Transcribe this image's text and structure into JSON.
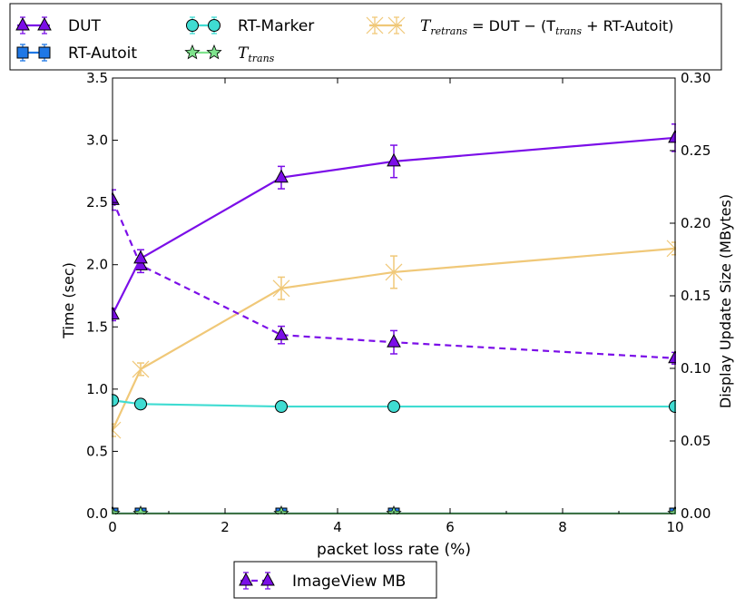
{
  "chart_data": {
    "type": "line",
    "xlabel": "packet loss rate (%)",
    "ylabel": "Time (sec)",
    "y2label": "Display Update Size (MBytes)",
    "xlim": [
      0,
      10
    ],
    "ylim": [
      0,
      3.5
    ],
    "y2lim": [
      0,
      0.3
    ],
    "x_ticks": [
      "0",
      "2",
      "4",
      "6",
      "8",
      "10"
    ],
    "y_ticks": [
      "0.0",
      "0.5",
      "1.0",
      "1.5",
      "2.0",
      "2.5",
      "3.0",
      "3.5"
    ],
    "y2_ticks": [
      "0.00",
      "0.05",
      "0.10",
      "0.15",
      "0.20",
      "0.25",
      "0.30"
    ],
    "grid": false,
    "top_legend": {
      "placement": "top",
      "entries": [
        {
          "series": "DUT",
          "label": "DUT"
        },
        {
          "series": "RT-Autoit",
          "label": "RT-Autoit"
        },
        {
          "series": "RT-Marker",
          "label": "RT-Marker"
        },
        {
          "series": "T_trans",
          "label": "T",
          "sub": "trans"
        },
        {
          "series": "T_retrans",
          "label": "T",
          "sub": "retrans",
          "suffix": " = DUT − (T",
          "sub2": "trans",
          "suffix2": " + RT-Autoit)"
        }
      ]
    },
    "bottom_legend": {
      "placement": "bottom",
      "entries": [
        {
          "series": "ImageView MB",
          "label": "ImageView MB"
        }
      ]
    },
    "series": [
      {
        "name": "DUT",
        "axis": "left",
        "color": "#7b0ee8",
        "style": "solid",
        "marker": "triangle",
        "x": [
          0,
          0.5,
          3,
          5,
          10
        ],
        "y": [
          1.6,
          2.05,
          2.7,
          2.83,
          3.02
        ],
        "err": [
          0.05,
          0.07,
          0.09,
          0.13,
          0.11
        ]
      },
      {
        "name": "RT-Autoit",
        "axis": "left",
        "color": "#1f78e6",
        "style": "solid",
        "marker": "square",
        "x": [
          0,
          0.5,
          3,
          5,
          10
        ],
        "y": [
          0.0,
          0.0,
          0.0,
          0.0,
          0.0
        ],
        "err": [
          0,
          0,
          0,
          0,
          0
        ]
      },
      {
        "name": "RT-Marker",
        "axis": "left",
        "color": "#3fdcd2",
        "style": "solid",
        "marker": "circle",
        "x": [
          0,
          0.5,
          3,
          5,
          10
        ],
        "y": [
          0.91,
          0.88,
          0.86,
          0.86,
          0.86
        ],
        "err": [
          0.01,
          0.01,
          0.01,
          0.01,
          0.01
        ]
      },
      {
        "name": "T_trans",
        "axis": "left",
        "color": "#7ee38c",
        "style": "solid",
        "marker": "star",
        "x": [
          0,
          0.5,
          3,
          5,
          10
        ],
        "y": [
          0.0,
          0.0,
          0.0,
          0.0,
          0.0
        ],
        "err": [
          0,
          0,
          0,
          0,
          0
        ]
      },
      {
        "name": "T_retrans",
        "axis": "left",
        "color": "#f0c878",
        "style": "solid",
        "marker": "x",
        "x": [
          0,
          0.5,
          3,
          5,
          10
        ],
        "y": [
          0.67,
          1.16,
          1.81,
          1.94,
          2.13
        ],
        "err": [
          0.05,
          0.05,
          0.09,
          0.13,
          0.05
        ]
      },
      {
        "name": "ImageView MB",
        "axis": "right",
        "color": "#7b0ee8",
        "style": "dashed",
        "marker": "triangle",
        "x": [
          0,
          0.5,
          3,
          5,
          10
        ],
        "y": [
          0.216,
          0.171,
          0.123,
          0.118,
          0.107
        ],
        "err": [
          0.007,
          0.005,
          0.006,
          0.008,
          0.004
        ]
      }
    ]
  }
}
